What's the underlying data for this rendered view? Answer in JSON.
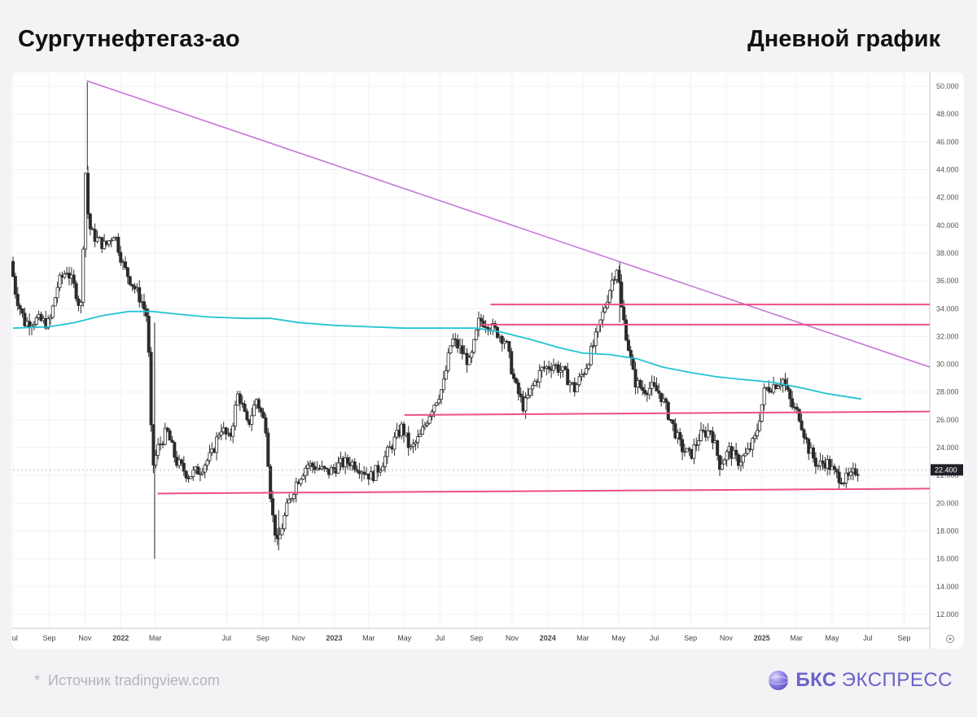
{
  "header": {
    "title": "Сургутнефтегаз-ао",
    "timeframe": "Дневной график"
  },
  "footer": {
    "star": "*",
    "source": "Источник tradingview.com",
    "brand_bold": "БКС",
    "brand_rest": "ЭКСПРЕСС",
    "brand_color": "#6b62c8"
  },
  "chart_data": {
    "type": "candlestick",
    "x_range": [
      "2021-07-01",
      "2025-10-15"
    ],
    "ylim": [
      11.0,
      51.0
    ],
    "y_ticks": [
      "12.000",
      "14.000",
      "16.000",
      "18.000",
      "20.000",
      "22.000",
      "24.000",
      "26.000",
      "28.000",
      "30.000",
      "32.000",
      "34.000",
      "36.000",
      "38.000",
      "40.000",
      "42.000",
      "44.000",
      "46.000",
      "48.000",
      "50.000"
    ],
    "x_ticks": [
      {
        "date": "2021-07-01",
        "label": "Jul"
      },
      {
        "date": "2021-09-01",
        "label": "Sep"
      },
      {
        "date": "2021-11-01",
        "label": "Nov"
      },
      {
        "date": "2022-01-01",
        "label": "2022"
      },
      {
        "date": "2022-03-01",
        "label": "Mar"
      },
      {
        "date": "2022-07-01",
        "label": "Jul"
      },
      {
        "date": "2022-09-01",
        "label": "Sep"
      },
      {
        "date": "2022-11-01",
        "label": "Nov"
      },
      {
        "date": "2023-01-01",
        "label": "2023"
      },
      {
        "date": "2023-03-01",
        "label": "Mar"
      },
      {
        "date": "2023-05-01",
        "label": "May"
      },
      {
        "date": "2023-07-01",
        "label": "Jul"
      },
      {
        "date": "2023-09-01",
        "label": "Sep"
      },
      {
        "date": "2023-11-01",
        "label": "Nov"
      },
      {
        "date": "2024-01-01",
        "label": "2024"
      },
      {
        "date": "2024-03-01",
        "label": "Mar"
      },
      {
        "date": "2024-05-01",
        "label": "May"
      },
      {
        "date": "2024-07-01",
        "label": "Jul"
      },
      {
        "date": "2024-09-01",
        "label": "Sep"
      },
      {
        "date": "2024-11-01",
        "label": "Nov"
      },
      {
        "date": "2025-01-01",
        "label": "2025"
      },
      {
        "date": "2025-03-01",
        "label": "Mar"
      },
      {
        "date": "2025-05-01",
        "label": "May"
      },
      {
        "date": "2025-07-01",
        "label": "Jul"
      },
      {
        "date": "2025-09-01",
        "label": "Sep"
      }
    ],
    "bold_tick_labels": [
      "2022",
      "2023",
      "2024",
      "2025"
    ],
    "last_price": "22.400",
    "candle_colors": {
      "up": "#ffffff",
      "down": "#2b2b2b",
      "wick": "#2b2b2b"
    },
    "ohlc_anchors": [
      [
        "2021-07-01",
        37.4
      ],
      [
        "2021-07-10",
        35.0
      ],
      [
        "2021-07-25",
        33.0
      ],
      [
        "2021-08-15",
        33.2
      ],
      [
        "2021-09-05",
        32.9
      ],
      [
        "2021-09-20",
        35.8
      ],
      [
        "2021-10-05",
        36.8
      ],
      [
        "2021-10-20",
        35.3
      ],
      [
        "2021-10-28",
        34.0
      ],
      [
        "2021-11-01",
        35.0
      ],
      [
        "2021-11-04",
        46.2
      ],
      [
        "2021-11-08",
        41.4
      ],
      [
        "2021-11-15",
        39.5
      ],
      [
        "2021-11-25",
        39.0
      ],
      [
        "2021-12-10",
        38.5
      ],
      [
        "2021-12-25",
        39.5
      ],
      [
        "2022-01-10",
        37.0
      ],
      [
        "2022-01-25",
        35.8
      ],
      [
        "2022-02-10",
        34.5
      ],
      [
        "2022-02-20",
        33.3
      ],
      [
        "2022-02-28",
        22.5
      ],
      [
        "2022-03-10",
        24.0
      ],
      [
        "2022-03-25",
        25.2
      ],
      [
        "2022-04-10",
        23.0
      ],
      [
        "2022-05-01",
        22.0
      ],
      [
        "2022-05-20",
        22.4
      ],
      [
        "2022-06-10",
        23.5
      ],
      [
        "2022-06-25",
        25.5
      ],
      [
        "2022-07-10",
        24.5
      ],
      [
        "2022-07-25",
        28.0
      ],
      [
        "2022-08-10",
        25.5
      ],
      [
        "2022-08-25",
        27.5
      ],
      [
        "2022-09-10",
        25.5
      ],
      [
        "2022-09-20",
        19.5
      ],
      [
        "2022-09-30",
        17.0
      ],
      [
        "2022-10-15",
        19.5
      ],
      [
        "2022-11-01",
        21.5
      ],
      [
        "2022-11-20",
        22.8
      ],
      [
        "2022-12-10",
        22.5
      ],
      [
        "2022-12-25",
        22.2
      ],
      [
        "2023-01-15",
        22.8
      ],
      [
        "2023-02-01",
        23.0
      ],
      [
        "2023-02-20",
        22.5
      ],
      [
        "2023-03-10",
        21.9
      ],
      [
        "2023-03-25",
        22.7
      ],
      [
        "2023-04-15",
        24.3
      ],
      [
        "2023-05-01",
        25.5
      ],
      [
        "2023-05-15",
        23.8
      ],
      [
        "2023-06-01",
        24.8
      ],
      [
        "2023-06-20",
        26.8
      ],
      [
        "2023-07-10",
        28.4
      ],
      [
        "2023-07-25",
        31.8
      ],
      [
        "2023-08-10",
        31.0
      ],
      [
        "2023-08-25",
        30.0
      ],
      [
        "2023-09-10",
        33.2
      ],
      [
        "2023-09-25",
        32.9
      ],
      [
        "2023-10-10",
        32.3
      ],
      [
        "2023-10-25",
        31.7
      ],
      [
        "2023-11-10",
        28.5
      ],
      [
        "2023-11-25",
        26.9
      ],
      [
        "2023-12-10",
        28.4
      ],
      [
        "2023-12-25",
        29.6
      ],
      [
        "2024-01-15",
        30.0
      ],
      [
        "2024-02-01",
        29.4
      ],
      [
        "2024-02-20",
        28.2
      ],
      [
        "2024-03-10",
        29.8
      ],
      [
        "2024-03-25",
        31.6
      ],
      [
        "2024-04-10",
        33.9
      ],
      [
        "2024-04-25",
        36.2
      ],
      [
        "2024-05-03",
        37.1
      ],
      [
        "2024-05-10",
        34.0
      ],
      [
        "2024-05-20",
        31.7
      ],
      [
        "2024-06-01",
        28.8
      ],
      [
        "2024-06-15",
        28.2
      ],
      [
        "2024-07-01",
        28.3
      ],
      [
        "2024-07-15",
        27.9
      ],
      [
        "2024-08-01",
        26.1
      ],
      [
        "2024-08-20",
        24.0
      ],
      [
        "2024-09-05",
        23.4
      ],
      [
        "2024-09-20",
        24.8
      ],
      [
        "2024-10-10",
        25.3
      ],
      [
        "2024-10-25",
        22.8
      ],
      [
        "2024-11-10",
        23.8
      ],
      [
        "2024-11-25",
        23.0
      ],
      [
        "2024-12-10",
        23.5
      ],
      [
        "2024-12-25",
        24.7
      ],
      [
        "2025-01-10",
        28.2
      ],
      [
        "2025-01-25",
        28.5
      ],
      [
        "2025-02-10",
        28.9
      ],
      [
        "2025-02-25",
        27.0
      ],
      [
        "2025-03-10",
        26.3
      ],
      [
        "2025-03-25",
        24.0
      ],
      [
        "2025-04-10",
        22.7
      ],
      [
        "2025-04-25",
        23.0
      ],
      [
        "2025-05-10",
        22.1
      ],
      [
        "2025-05-25",
        21.7
      ],
      [
        "2025-06-05",
        21.8
      ],
      [
        "2025-06-15",
        22.4
      ]
    ],
    "moving_average": {
      "color": "#22c3d3",
      "points": [
        [
          "2021-07-01",
          32.6
        ],
        [
          "2021-09-01",
          32.7
        ],
        [
          "2021-10-15",
          33.0
        ],
        [
          "2021-12-01",
          33.5
        ],
        [
          "2022-01-15",
          33.8
        ],
        [
          "2022-02-25",
          33.8
        ],
        [
          "2022-04-10",
          33.6
        ],
        [
          "2022-06-01",
          33.4
        ],
        [
          "2022-08-01",
          33.3
        ],
        [
          "2022-09-15",
          33.3
        ],
        [
          "2022-11-01",
          33.0
        ],
        [
          "2023-01-01",
          32.8
        ],
        [
          "2023-03-01",
          32.7
        ],
        [
          "2023-05-01",
          32.6
        ],
        [
          "2023-07-15",
          32.6
        ],
        [
          "2023-09-01",
          32.6
        ],
        [
          "2023-10-15",
          32.3
        ],
        [
          "2023-12-01",
          31.8
        ],
        [
          "2024-01-20",
          31.2
        ],
        [
          "2024-03-01",
          30.8
        ],
        [
          "2024-04-15",
          30.7
        ],
        [
          "2024-06-01",
          30.4
        ],
        [
          "2024-07-15",
          29.8
        ],
        [
          "2024-09-01",
          29.4
        ],
        [
          "2024-10-15",
          29.1
        ],
        [
          "2024-12-01",
          28.9
        ],
        [
          "2025-01-20",
          28.7
        ],
        [
          "2025-03-10",
          28.3
        ],
        [
          "2025-04-20",
          27.9
        ],
        [
          "2025-06-20",
          27.5
        ]
      ]
    },
    "lines": [
      {
        "name": "trend",
        "color": "#c56fd6",
        "from": [
          "2021-11-04",
          50.4
        ],
        "to": [
          "2025-10-15",
          29.8
        ]
      },
      {
        "name": "level-34.3",
        "color": "#ec4f86",
        "from": [
          "2023-09-25",
          34.3
        ],
        "to": [
          "2025-10-15",
          34.3
        ]
      },
      {
        "name": "level-32.8",
        "color": "#ec4f86",
        "from": [
          "2023-09-10",
          32.85
        ],
        "to": [
          "2025-10-15",
          32.85
        ]
      },
      {
        "name": "level-26.5",
        "color": "#ec4f86",
        "from": [
          "2023-05-01",
          26.35
        ],
        "to": [
          "2025-10-15",
          26.6
        ]
      },
      {
        "name": "support",
        "color": "#ec4f86",
        "from": [
          "2022-03-05",
          20.7
        ],
        "to": [
          "2025-10-15",
          21.05
        ]
      }
    ]
  }
}
